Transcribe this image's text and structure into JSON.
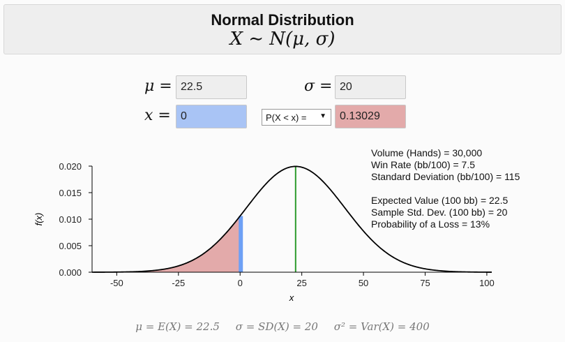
{
  "header": {
    "title": "Normal Distribution",
    "formula": "X ∼ N(μ, σ)"
  },
  "inputs": {
    "mu_label": "μ =",
    "mu_value": "22.5",
    "sigma_label": "σ =",
    "sigma_value": "20",
    "x_label": "x =",
    "x_value": "0",
    "prob_select": "P(X < x) =",
    "prob_value": "0.13029"
  },
  "stats": {
    "volume": "Volume (Hands) = 30,000",
    "win_rate": "Win Rate (bb/100) = 7.5",
    "std_dev": "Standard Deviation (bb/100) = 115",
    "expected": "Expected Value (100 bb) = 22.5",
    "sample_sd": "Sample Std. Dev. (100 bb) = 20",
    "loss_prob": "Probability of a Loss = 13%"
  },
  "footer": {
    "mean": "μ = E(X) = 22.5",
    "sd": "σ = SD(X) = 20",
    "var": "σ² = Var(X) = 400"
  },
  "colors": {
    "tail_fill": "#e3aaaa",
    "x_line": "#6ea0f5",
    "mean_line": "#2a9a2a",
    "curve": "#000000"
  },
  "chart_data": {
    "type": "area",
    "distribution": "normal",
    "mu": 22.5,
    "sigma": 20,
    "x_marker": 0,
    "shaded": "x < 0",
    "xlabel": "x",
    "ylabel": "f(x)",
    "xlim": [
      -60,
      102
    ],
    "ylim": [
      0,
      0.02
    ],
    "x_ticks": [
      "-50",
      "-25",
      "0",
      "25",
      "50",
      "75",
      "100"
    ],
    "x_tick_values": [
      -50,
      -25,
      0,
      25,
      50,
      75,
      100
    ],
    "y_ticks": [
      "0.000",
      "0.005",
      "0.010",
      "0.015",
      "0.020"
    ],
    "y_tick_values": [
      0,
      0.005,
      0.01,
      0.015,
      0.02
    ]
  }
}
